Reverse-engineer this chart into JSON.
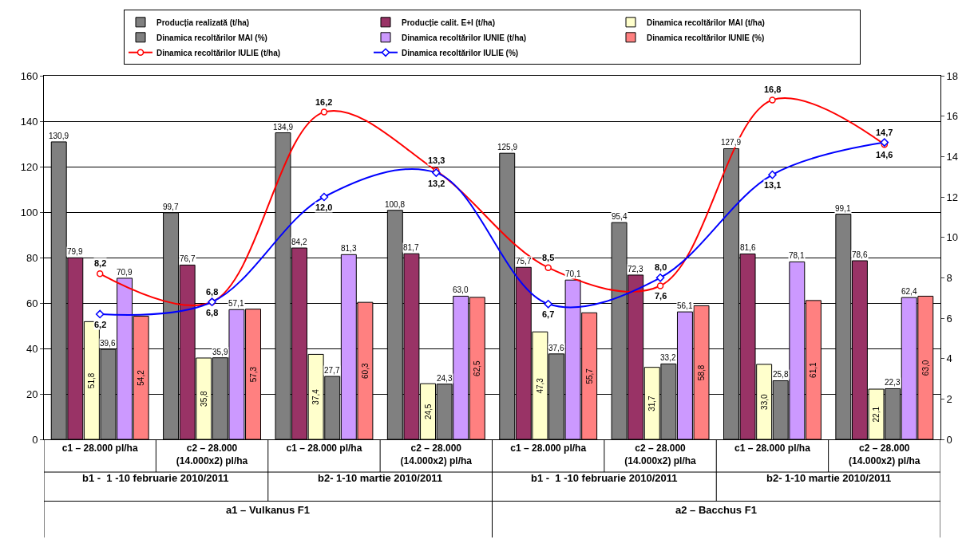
{
  "chart_data": {
    "type": "bar",
    "categories": [
      "c1 – 28.000 pl/ha",
      "c2 – 28.000\n(14.000x2) pl/ha",
      "c1 – 28.000 pl/ha",
      "c2 – 28.000\n(14.000x2) pl/ha",
      "c1 – 28.000 pl/ha",
      "c2 – 28.000\n(14.000x2) pl/ha",
      "c1 – 28.000 pl/ha",
      "c2 – 28.000\n(14.000x2) pl/ha"
    ],
    "series": [
      {
        "name": "Producția realizată (t/ha)",
        "color": "#808080",
        "values": [
          130.9,
          99.7,
          134.9,
          100.8,
          125.9,
          95.4,
          127.9,
          99.1
        ],
        "value_labels": [
          "130,9",
          "99,7",
          "134,9",
          "100,8",
          "125,9",
          "95,4",
          "127,9",
          "99,1"
        ]
      },
      {
        "name": "Producție calit. E+I (t/ha)",
        "color": "#993366",
        "values": [
          79.9,
          76.7,
          84.2,
          81.7,
          75.7,
          72.3,
          81.6,
          78.6
        ],
        "value_labels": [
          "79,9",
          "76,7",
          "84,2",
          "81,7",
          "75,7",
          "72,3",
          "81,6",
          "78,6"
        ]
      },
      {
        "name": "Dinamica recoltărilor MAI (t/ha)",
        "color": "#ffffcc",
        "values": [
          51.8,
          35.8,
          37.4,
          24.5,
          47.3,
          31.7,
          33.0,
          22.1
        ],
        "value_labels": [
          "51,8",
          "35,8",
          "37,4",
          "24,5",
          "47,3",
          "31,7",
          "33,0",
          "22,1"
        ]
      },
      {
        "name": "Dinamica recoltărilor MAI (%)",
        "color": "#808080",
        "values": [
          39.6,
          35.9,
          27.7,
          24.3,
          37.6,
          33.2,
          25.8,
          22.3
        ],
        "value_labels": [
          "39,6",
          "35,9",
          "27,7",
          "24,3",
          "37,6",
          "33,2",
          "25,8",
          "22,3"
        ]
      },
      {
        "name": "Dinamica recoltărilor IUNIE (t/ha)",
        "color": "#cc99ff",
        "values": [
          70.9,
          57.1,
          81.3,
          63.0,
          70.1,
          56.1,
          78.1,
          62.4
        ],
        "value_labels": [
          "70,9",
          "57,1",
          "81,3",
          "63,0",
          "70,1",
          "56,1",
          "78,1",
          "62,4"
        ]
      },
      {
        "name": "Dinamica recoltărilor IUNIE (%)",
        "color": "#ff8080",
        "values": [
          54.2,
          57.3,
          60.3,
          62.5,
          55.7,
          58.8,
          61.1,
          63.0
        ],
        "value_labels": [
          "54,2",
          "57,3",
          "60,3",
          "62,5",
          "55,7",
          "58,8",
          "61,1",
          "63,0"
        ]
      },
      {
        "name": "Dinamica recoltărilor IULIE (t/ha)",
        "type": "line",
        "axis": "y2",
        "marker": "circle",
        "color": "#ff0000",
        "values": [
          8.2,
          6.8,
          16.2,
          13.3,
          8.5,
          7.6,
          16.8,
          14.6
        ],
        "value_labels": [
          "8,2",
          "6,8",
          "16,2",
          "13,3",
          "8,5",
          "7,6",
          "16,8",
          "14,6"
        ]
      },
      {
        "name": "Dinamica recoltărilor IULIE (%)",
        "type": "line",
        "axis": "y2",
        "marker": "diamond",
        "color": "#0000ff",
        "values": [
          6.2,
          6.8,
          12.0,
          13.2,
          6.7,
          8.0,
          13.1,
          14.7
        ],
        "value_labels": [
          "6,2",
          "6,8",
          "12,0",
          "13,2",
          "6,7",
          "8,0",
          "13,1",
          "14,7"
        ]
      }
    ],
    "ylim": [
      0,
      160
    ],
    "yticks": [
      0,
      20,
      40,
      60,
      80,
      100,
      120,
      140,
      160
    ],
    "y2lim": [
      0,
      18
    ],
    "y2ticks": [
      0,
      2,
      4,
      6,
      8,
      10,
      12,
      14,
      16,
      18
    ],
    "grid": "y",
    "legend": "top",
    "annotations": [
      "b1 -  1 -10 februarie 2010/2011",
      "b2- 1-10 martie 2010/2011",
      "b1 -  1 -10 februarie 2010/2011",
      "b2- 1-10 martie 2010/2011",
      "a1 – Vulkanus F1",
      "a2 – Bacchus F1"
    ]
  }
}
